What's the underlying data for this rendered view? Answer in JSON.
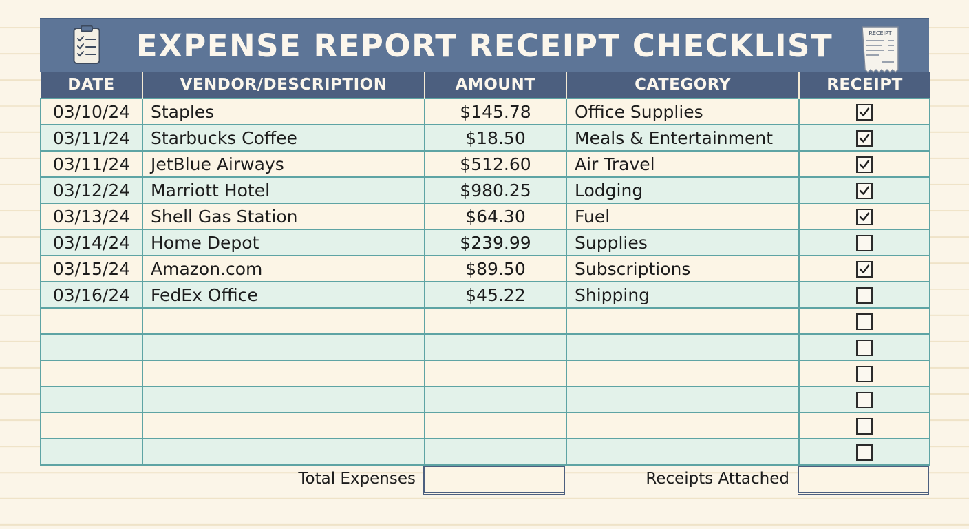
{
  "title": "EXPENSE REPORT RECEIPT CHECKLIST",
  "receipt_icon_text": "RECEIPT",
  "columns": [
    "DATE",
    "VENDOR/DESCRIPTION",
    "AMOUNT",
    "CATEGORY",
    "RECEIPT"
  ],
  "rows": [
    {
      "date": "03/10/24",
      "vendor": "Staples",
      "amount": "$145.78",
      "category": "Office Supplies",
      "receipt": true
    },
    {
      "date": "03/11/24",
      "vendor": "Starbucks Coffee",
      "amount": "$18.50",
      "category": "Meals & Entertainment",
      "receipt": true
    },
    {
      "date": "03/11/24",
      "vendor": "JetBlue Airways",
      "amount": "$512.60",
      "category": "Air Travel",
      "receipt": true
    },
    {
      "date": "03/12/24",
      "vendor": "Marriott Hotel",
      "amount": "$980.25",
      "category": "Lodging",
      "receipt": true
    },
    {
      "date": "03/13/24",
      "vendor": "Shell Gas Station",
      "amount": "$64.30",
      "category": "Fuel",
      "receipt": true
    },
    {
      "date": "03/14/24",
      "vendor": "Home Depot",
      "amount": "$239.99",
      "category": "Supplies",
      "receipt": false
    },
    {
      "date": "03/15/24",
      "vendor": "Amazon.com",
      "amount": "$89.50",
      "category": "Subscriptions",
      "receipt": true
    },
    {
      "date": "03/16/24",
      "vendor": "FedEx Office",
      "amount": "$45.22",
      "category": "Shipping",
      "receipt": false
    },
    {
      "date": "",
      "vendor": "",
      "amount": "",
      "category": "",
      "receipt": false
    },
    {
      "date": "",
      "vendor": "",
      "amount": "",
      "category": "",
      "receipt": false
    },
    {
      "date": "",
      "vendor": "",
      "amount": "",
      "category": "",
      "receipt": false
    },
    {
      "date": "",
      "vendor": "",
      "amount": "",
      "category": "",
      "receipt": false
    },
    {
      "date": "",
      "vendor": "",
      "amount": "",
      "category": "",
      "receipt": false
    },
    {
      "date": "",
      "vendor": "",
      "amount": "",
      "category": "",
      "receipt": false
    }
  ],
  "footer": {
    "total_label": "Total Expenses",
    "total_value": "",
    "receipts_label": "Receipts Attached",
    "receipts_value": ""
  },
  "colors": {
    "banner": "#5d7597",
    "header": "#4c5f7f",
    "grid": "#5ea4a4",
    "row_cream": "#fcf5e6",
    "row_mint": "#e3f2ea"
  }
}
